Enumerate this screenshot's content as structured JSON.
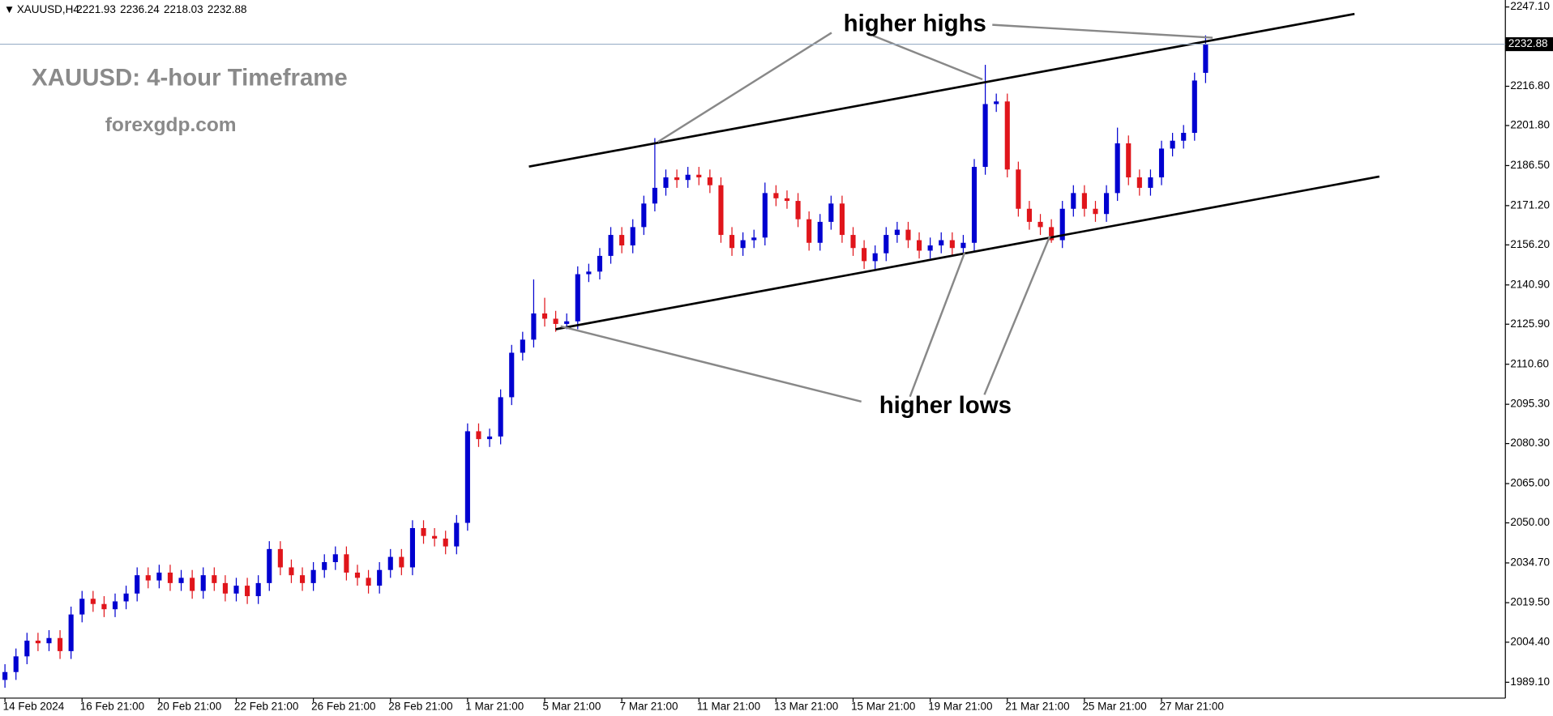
{
  "chart_data": {
    "type": "candlestick",
    "symbol": "XAUUSD,H4",
    "title": "XAUUSD: 4-hour Timeframe",
    "subtitle": "forexgdp.com",
    "annotations": [
      "higher highs",
      "higher lows"
    ],
    "up_color": "#0000d0",
    "down_color": "#e0151b",
    "grid": false,
    "categories": [
      "14 Feb 2024",
      null,
      null,
      null,
      null,
      null,
      null,
      "16 Feb 21:00",
      null,
      null,
      null,
      null,
      null,
      null,
      "20 Feb 21:00",
      null,
      null,
      null,
      null,
      null,
      null,
      "22 Feb 21:00",
      null,
      null,
      null,
      null,
      null,
      null,
      "26 Feb 21:00",
      null,
      null,
      null,
      null,
      null,
      null,
      "28 Feb 21:00",
      null,
      null,
      null,
      null,
      null,
      null,
      "1 Mar 21:00",
      null,
      null,
      null,
      null,
      null,
      null,
      "5 Mar 21:00",
      null,
      null,
      null,
      null,
      null,
      null,
      "7 Mar 21:00",
      null,
      null,
      null,
      null,
      null,
      null,
      "11 Mar 21:00",
      null,
      null,
      null,
      null,
      null,
      null,
      "13 Mar 21:00",
      null,
      null,
      null,
      null,
      null,
      null,
      "15 Mar 21:00",
      null,
      null,
      null,
      null,
      null,
      null,
      "19 Mar 21:00",
      null,
      null,
      null,
      null,
      null,
      null,
      "21 Mar 21:00",
      null,
      null,
      null,
      null,
      null,
      null,
      "25 Mar 21:00",
      null,
      null,
      null,
      null,
      null,
      null,
      "27 Mar 21:00",
      null,
      null,
      null,
      null
    ],
    "open": [
      1990,
      1993,
      1999,
      2005,
      2004,
      2006,
      2001,
      2015,
      2021,
      2019,
      2017,
      2020,
      2023,
      2030,
      2028,
      2031,
      2027,
      2029,
      2024,
      2030,
      2027,
      2023,
      2026,
      2022,
      2027,
      2040,
      2033,
      2030,
      2027,
      2032,
      2035,
      2038,
      2031,
      2029,
      2026,
      2032,
      2037,
      2033,
      2048,
      2045,
      2044,
      2041,
      2050,
      2085,
      2082,
      2083,
      2098,
      2115,
      2120,
      2130,
      2128,
      2126,
      2127,
      2145,
      2146,
      2152,
      2160,
      2156,
      2163,
      2172,
      2178,
      2182,
      2181,
      2183,
      2182,
      2179,
      2160,
      2155,
      2158,
      2159,
      2176,
      2174,
      2173,
      2166,
      2157,
      2165,
      2172,
      2160,
      2155,
      2150,
      2153,
      2160,
      2162,
      2158,
      2154,
      2156,
      2158,
      2155,
      2157,
      2186,
      2210,
      2211,
      2185,
      2170,
      2165,
      2163,
      2158,
      2170,
      2176,
      2170,
      2168,
      2176,
      2195,
      2182,
      2178,
      2182,
      2193,
      2196,
      2199,
      2221.93
    ],
    "high": [
      1996,
      2002,
      2008,
      2008,
      2009,
      2009,
      2018,
      2024,
      2024,
      2022,
      2023,
      2026,
      2033,
      2033,
      2034,
      2034,
      2032,
      2032,
      2033,
      2033,
      2030,
      2029,
      2029,
      2030,
      2043,
      2043,
      2036,
      2033,
      2035,
      2038,
      2041,
      2041,
      2034,
      2032,
      2035,
      2040,
      2040,
      2051,
      2051,
      2048,
      2047,
      2053,
      2088,
      2088,
      2086,
      2101,
      2118,
      2123,
      2143,
      2136,
      2131,
      2130,
      2148,
      2149,
      2155,
      2163,
      2163,
      2166,
      2175,
      2197,
      2185,
      2185,
      2186,
      2186,
      2185,
      2182,
      2163,
      2161,
      2162,
      2180,
      2179,
      2177,
      2176,
      2169,
      2168,
      2175,
      2175,
      2163,
      2158,
      2156,
      2163,
      2165,
      2165,
      2161,
      2159,
      2161,
      2161,
      2160,
      2189,
      2225,
      2214,
      2214,
      2188,
      2173,
      2168,
      2166,
      2173,
      2179,
      2179,
      2173,
      2179,
      2201,
      2198,
      2185,
      2185,
      2196,
      2199,
      2202,
      2222,
      2236.24
    ],
    "low": [
      1987,
      1990,
      1996,
      2001,
      2001,
      1998,
      1998,
      2012,
      2016,
      2014,
      2014,
      2017,
      2020,
      2025,
      2025,
      2024,
      2024,
      2021,
      2021,
      2024,
      2020,
      2020,
      2019,
      2019,
      2024,
      2030,
      2027,
      2024,
      2024,
      2029,
      2032,
      2028,
      2026,
      2023,
      2023,
      2029,
      2030,
      2030,
      2042,
      2041,
      2038,
      2038,
      2047,
      2079,
      2079,
      2080,
      2095,
      2112,
      2117,
      2125,
      2123,
      2124,
      2124,
      2142,
      2143,
      2149,
      2153,
      2153,
      2160,
      2169,
      2175,
      2178,
      2178,
      2179,
      2176,
      2157,
      2152,
      2152,
      2155,
      2156,
      2171,
      2170,
      2163,
      2154,
      2154,
      2162,
      2157,
      2152,
      2147,
      2147,
      2150,
      2157,
      2155,
      2151,
      2151,
      2153,
      2152,
      2152,
      2154,
      2183,
      2207,
      2182,
      2167,
      2162,
      2160,
      2157,
      2155,
      2167,
      2167,
      2165,
      2165,
      2173,
      2179,
      2175,
      2175,
      2179,
      2190,
      2193,
      2196,
      2218.03
    ],
    "close": [
      1993,
      1999,
      2005,
      2004,
      2006,
      2001,
      2015,
      2021,
      2019,
      2017,
      2020,
      2023,
      2030,
      2028,
      2031,
      2027,
      2029,
      2024,
      2030,
      2027,
      2023,
      2026,
      2022,
      2027,
      2040,
      2033,
      2030,
      2027,
      2032,
      2035,
      2038,
      2031,
      2029,
      2026,
      2032,
      2037,
      2033,
      2048,
      2045,
      2044,
      2041,
      2050,
      2085,
      2082,
      2083,
      2098,
      2115,
      2120,
      2130,
      2128,
      2126,
      2127,
      2145,
      2146,
      2152,
      2160,
      2156,
      2163,
      2172,
      2178,
      2182,
      2181,
      2183,
      2182,
      2179,
      2160,
      2155,
      2158,
      2159,
      2176,
      2174,
      2173,
      2166,
      2157,
      2165,
      2172,
      2160,
      2155,
      2150,
      2153,
      2160,
      2162,
      2158,
      2154,
      2156,
      2158,
      2155,
      2157,
      2186,
      2210,
      2211,
      2185,
      2170,
      2165,
      2163,
      2158,
      2170,
      2176,
      2170,
      2168,
      2176,
      2195,
      2182,
      2178,
      2182,
      2193,
      2196,
      2199,
      2219,
      2232.88
    ],
    "ylim": [
      1983.04,
      2249.75
    ],
    "yticks": [
      {
        "value": 1989.1,
        "label": "1989.10"
      },
      {
        "value": 2004.4,
        "label": "2004.40"
      },
      {
        "value": 2019.5,
        "label": "2019.50"
      },
      {
        "value": 2034.7,
        "label": "2034.70"
      },
      {
        "value": 2050,
        "label": "2050.00"
      },
      {
        "value": 2065,
        "label": "2065.00"
      },
      {
        "value": 2080.3,
        "label": "2080.30"
      },
      {
        "value": 2095.3,
        "label": "2095.30"
      },
      {
        "value": 2110.6,
        "label": "2110.60"
      },
      {
        "value": 2125.9,
        "label": "2125.90"
      },
      {
        "value": 2140.9,
        "label": "2140.90"
      },
      {
        "value": 2156.2,
        "label": "2156.20"
      },
      {
        "value": 2171.2,
        "label": "2171.20"
      },
      {
        "value": 2186.5,
        "label": "2186.50"
      },
      {
        "value": 2201.8,
        "label": "2201.80"
      },
      {
        "value": 2216.8,
        "label": "2216.80"
      },
      {
        "value": 2247.1,
        "label": "2247.10"
      }
    ]
  }
}
